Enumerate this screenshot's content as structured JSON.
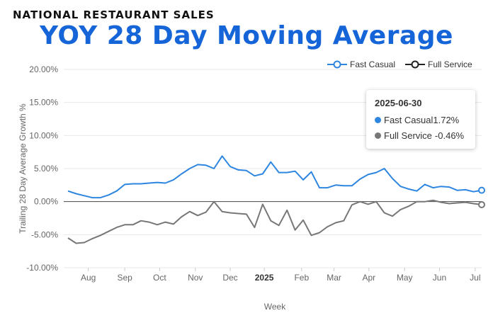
{
  "header": {
    "kicker": "NATIONAL RESTAURANT SALES",
    "title": "YOY 28 Day Moving Average"
  },
  "colors": {
    "fast_casual": "#2e86e0",
    "full_service": "#777777",
    "title": "#1565d8",
    "grid": "#e8e8e8"
  },
  "tooltip": {
    "date": "2025-06-30",
    "rows": [
      {
        "label": "Fast Casual",
        "value": "1.72%"
      },
      {
        "label": "Full Service",
        "value": "-0.46%"
      }
    ]
  },
  "chart_data": {
    "type": "line",
    "title": "YOY 28 Day Moving Average",
    "xlabel": "Week",
    "ylabel": "Trailing 28 Day Average Growth %",
    "ylim": [
      -10,
      20
    ],
    "y_ticks": [
      20,
      15,
      10,
      5,
      0,
      -5,
      -10
    ],
    "y_tick_labels": [
      "20.00%",
      "15.00%",
      "10.00%",
      "5.00%",
      "0.00%",
      "-5.00%",
      "-10.00%"
    ],
    "x_ticks": [
      {
        "label": "Aug",
        "week": 2.5
      },
      {
        "label": "Sep",
        "week": 7
      },
      {
        "label": "Oct",
        "week": 11.3
      },
      {
        "label": "Nov",
        "week": 15.7
      },
      {
        "label": "Dec",
        "week": 20
      },
      {
        "label": "2025",
        "week": 24.2,
        "bold": true
      },
      {
        "label": "Feb",
        "week": 28.8
      },
      {
        "label": "Mar",
        "week": 32.8
      },
      {
        "label": "Apr",
        "week": 37.1
      },
      {
        "label": "May",
        "week": 41.5
      },
      {
        "label": "Jun",
        "week": 45.8
      },
      {
        "label": "Jul",
        "week": 50.2
      }
    ],
    "legend_position": "top-right",
    "grid": true,
    "series": [
      {
        "name": "Fast Casual",
        "color": "#2e86e0",
        "values": [
          1.6,
          1.2,
          0.9,
          0.6,
          0.6,
          1.0,
          1.6,
          2.6,
          2.7,
          2.7,
          2.8,
          2.9,
          2.8,
          3.3,
          4.2,
          5.0,
          5.6,
          5.5,
          5.0,
          6.9,
          5.3,
          4.8,
          4.7,
          3.9,
          4.2,
          6.0,
          4.4,
          4.4,
          4.6,
          3.3,
          4.5,
          2.1,
          2.1,
          2.5,
          2.4,
          2.4,
          3.4,
          4.1,
          4.4,
          5.0,
          3.5,
          2.3,
          1.9,
          1.6,
          2.6,
          2.1,
          2.3,
          2.2,
          1.7,
          1.8,
          1.5,
          1.72
        ]
      },
      {
        "name": "Full Service",
        "color": "#777777",
        "values": [
          -5.5,
          -6.3,
          -6.2,
          -5.6,
          -5.1,
          -4.5,
          -3.9,
          -3.5,
          -3.5,
          -2.9,
          -3.1,
          -3.5,
          -3.1,
          -3.4,
          -2.3,
          -1.5,
          -2.1,
          -1.6,
          0.0,
          -1.5,
          -1.7,
          -1.8,
          -1.9,
          -3.9,
          -0.4,
          -2.9,
          -3.6,
          -1.3,
          -4.3,
          -2.8,
          -5.1,
          -4.7,
          -3.8,
          -3.2,
          -2.9,
          -0.5,
          0.0,
          -0.4,
          0.0,
          -1.7,
          -2.2,
          -1.2,
          -0.7,
          0.0,
          0.0,
          0.2,
          -0.1,
          -0.3,
          -0.2,
          -0.1,
          -0.3,
          -0.46
        ]
      }
    ]
  }
}
